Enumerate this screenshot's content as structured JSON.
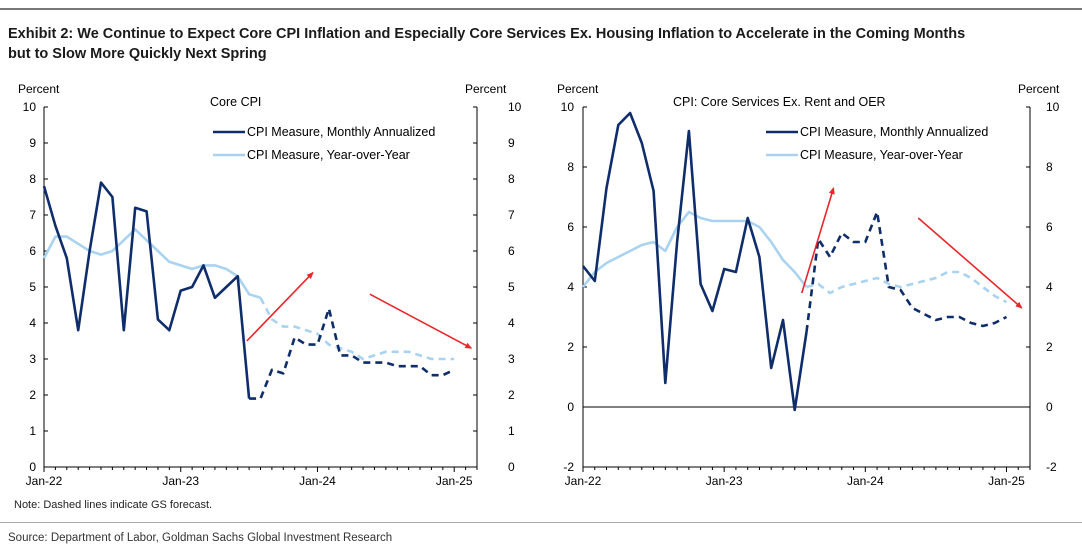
{
  "title": {
    "line1": "Exhibit 2: We Continue to Expect Core CPI Inflation and Especially Core Services Ex. Housing Inflation to Accelerate in the Coming Months",
    "line2": "but to Slow More Quickly Next Spring"
  },
  "source": "Source: Department of Labor, Goldman Sachs Global Investment Research",
  "note": "Note: Dashed lines indicate GS forecast.",
  "colors": {
    "monthly": "#0f2d6b",
    "yoy": "#a9d3f0",
    "arrow": "#e8262b",
    "axis": "#000000"
  },
  "chart_data": [
    {
      "type": "line",
      "title": "Core CPI",
      "ylabel_left": "Percent",
      "ylabel_right": "Percent",
      "ylim": [
        0,
        10
      ],
      "yticks": [
        0,
        1,
        2,
        3,
        4,
        5,
        6,
        7,
        8,
        9,
        10
      ],
      "xlim": [
        0,
        38
      ],
      "xticks": [
        {
          "x": 0,
          "label": "Jan-22"
        },
        {
          "x": 12,
          "label": "Jan-23"
        },
        {
          "x": 24,
          "label": "Jan-24"
        },
        {
          "x": 36,
          "label": "Jan-25"
        }
      ],
      "legend": [
        "CPI Measure, Monthly Annualized",
        "CPI Measure, Year-over-Year"
      ],
      "legend_position": "top-center",
      "series": [
        {
          "name": "CPI Measure, Monthly Annualized",
          "color": "#0f2d6b",
          "actual_x": [
            0,
            1,
            2,
            3,
            4,
            5,
            6,
            7,
            8,
            9,
            10,
            11,
            12,
            13,
            14,
            15,
            16,
            17,
            18
          ],
          "actual_y": [
            7.8,
            6.7,
            5.8,
            3.8,
            6.0,
            7.9,
            7.5,
            3.8,
            7.2,
            7.1,
            4.1,
            3.8,
            4.9,
            5.0,
            5.6,
            4.7,
            5.0,
            5.3,
            1.9
          ],
          "forecast_x": [
            18,
            19,
            20,
            21,
            22,
            23,
            24,
            25,
            26,
            27,
            28,
            29,
            30,
            31,
            32,
            33,
            34,
            35,
            36
          ],
          "forecast_y": [
            1.9,
            1.9,
            2.7,
            2.6,
            3.6,
            3.4,
            3.4,
            4.4,
            3.1,
            3.1,
            2.9,
            2.9,
            2.9,
            2.8,
            2.8,
            2.8,
            2.55,
            2.55,
            2.7
          ]
        },
        {
          "name": "CPI Measure, Year-over-Year",
          "color": "#a9d3f0",
          "actual_x": [
            0,
            1,
            2,
            3,
            4,
            5,
            6,
            7,
            8,
            9,
            10,
            11,
            12,
            13,
            14,
            15,
            16,
            17,
            18,
            19
          ],
          "actual_y": [
            5.8,
            6.4,
            6.4,
            6.2,
            6.0,
            5.9,
            6.0,
            6.3,
            6.6,
            6.3,
            6.0,
            5.7,
            5.6,
            5.5,
            5.6,
            5.6,
            5.5,
            5.3,
            4.8,
            4.7
          ],
          "forecast_x": [
            19,
            20,
            21,
            22,
            23,
            24,
            25,
            26,
            27,
            28,
            29,
            30,
            31,
            32,
            33,
            34,
            35,
            36
          ],
          "forecast_y": [
            4.7,
            4.1,
            3.9,
            3.9,
            3.8,
            3.7,
            3.4,
            3.3,
            3.2,
            3.0,
            3.1,
            3.2,
            3.2,
            3.2,
            3.1,
            3.0,
            3.0,
            3.0
          ]
        }
      ],
      "arrows": [
        {
          "from": [
            17.8,
            3.5
          ],
          "to": [
            23.6,
            5.4
          ]
        },
        {
          "from": [
            28.6,
            4.8
          ],
          "to": [
            37.5,
            3.3
          ]
        }
      ]
    },
    {
      "type": "line",
      "title": "CPI: Core Services Ex. Rent and OER",
      "ylabel_left": "Percent",
      "ylabel_right": "Percent",
      "ylim": [
        -2,
        10
      ],
      "yticks": [
        -2,
        0,
        2,
        4,
        6,
        8,
        10
      ],
      "xlim": [
        0,
        38
      ],
      "xticks": [
        {
          "x": 0,
          "label": "Jan-22"
        },
        {
          "x": 12,
          "label": "Jan-23"
        },
        {
          "x": 24,
          "label": "Jan-24"
        },
        {
          "x": 36,
          "label": "Jan-25"
        }
      ],
      "legend": [
        "CPI Measure, Monthly Annualized",
        "CPI Measure, Year-over-Year"
      ],
      "legend_position": "top-center",
      "series": [
        {
          "name": "CPI Measure, Monthly Annualized",
          "color": "#0f2d6b",
          "actual_x": [
            0,
            1,
            2,
            3,
            4,
            5,
            6,
            7,
            8,
            9,
            10,
            11,
            12,
            13,
            14,
            15,
            16,
            17,
            18,
            19
          ],
          "actual_y": [
            4.7,
            4.2,
            7.3,
            9.4,
            9.8,
            8.8,
            7.2,
            0.8,
            5.5,
            9.2,
            4.1,
            3.2,
            4.6,
            4.5,
            6.3,
            5.0,
            1.3,
            2.9,
            -0.1,
            2.5
          ],
          "forecast_x": [
            19,
            20,
            21,
            22,
            23,
            24,
            25,
            26,
            27,
            28,
            29,
            30,
            31,
            32,
            33,
            34,
            35,
            36
          ],
          "forecast_y": [
            2.5,
            5.6,
            5.0,
            5.8,
            5.5,
            5.5,
            6.5,
            4.0,
            3.9,
            3.3,
            3.1,
            2.9,
            3.0,
            3.0,
            2.8,
            2.7,
            2.8,
            3.0
          ]
        },
        {
          "name": "CPI Measure, Year-over-Year",
          "color": "#a9d3f0",
          "actual_x": [
            0,
            1,
            2,
            3,
            4,
            5,
            6,
            7,
            8,
            9,
            10,
            11,
            12,
            13,
            14,
            15,
            16,
            17,
            18,
            19
          ],
          "actual_y": [
            4.0,
            4.5,
            4.8,
            5.0,
            5.2,
            5.4,
            5.5,
            5.2,
            6.0,
            6.5,
            6.3,
            6.2,
            6.2,
            6.2,
            6.2,
            6.0,
            5.5,
            4.9,
            4.5,
            4.0
          ],
          "forecast_x": [
            19,
            20,
            21,
            22,
            23,
            24,
            25,
            26,
            27,
            28,
            29,
            30,
            31,
            32,
            33,
            34,
            35,
            36
          ],
          "forecast_y": [
            4.0,
            4.1,
            3.8,
            4.0,
            4.1,
            4.2,
            4.3,
            4.1,
            4.0,
            4.1,
            4.2,
            4.3,
            4.5,
            4.5,
            4.3,
            4.0,
            3.7,
            3.5
          ]
        }
      ],
      "arrows": [
        {
          "from": [
            18.6,
            3.8
          ],
          "to": [
            21.3,
            7.3
          ]
        },
        {
          "from": [
            28.5,
            6.3
          ],
          "to": [
            37.3,
            3.3
          ]
        }
      ]
    }
  ]
}
